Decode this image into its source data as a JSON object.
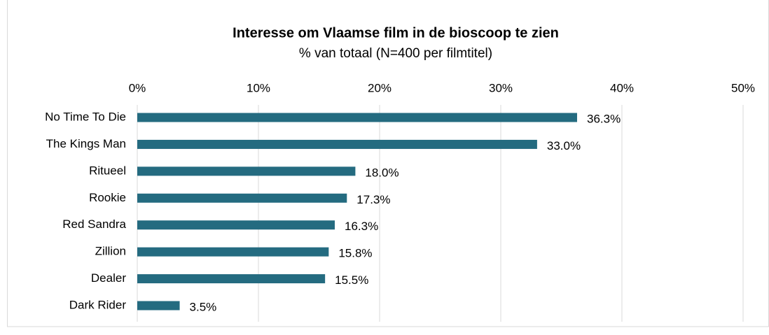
{
  "chart_data": {
    "type": "bar",
    "orientation": "horizontal",
    "title": "Interesse om Vlaamse film in de bioscoop te zien",
    "subtitle": "% van totaal (N=400 per filmtitel)",
    "categories": [
      "No Time To Die",
      "The Kings Man",
      "Ritueel",
      "Rookie",
      "Red Sandra",
      "Zillion",
      "Dealer",
      "Dark Rider"
    ],
    "values": [
      36.3,
      33.0,
      18.0,
      17.3,
      16.3,
      15.8,
      15.5,
      3.5
    ],
    "value_labels": [
      "36.3%",
      "33.0%",
      "18.0%",
      "17.3%",
      "16.3%",
      "15.8%",
      "15.5%",
      "3.5%"
    ],
    "color": "#246b80",
    "xlim": [
      0,
      50
    ],
    "xticks": [
      {
        "value": 0,
        "label": "0%"
      },
      {
        "value": 10,
        "label": "10%"
      },
      {
        "value": 20,
        "label": "20%"
      },
      {
        "value": 30,
        "label": "30%"
      },
      {
        "value": 40,
        "label": "40%"
      },
      {
        "value": 50,
        "label": "50%"
      }
    ],
    "grid": true
  }
}
